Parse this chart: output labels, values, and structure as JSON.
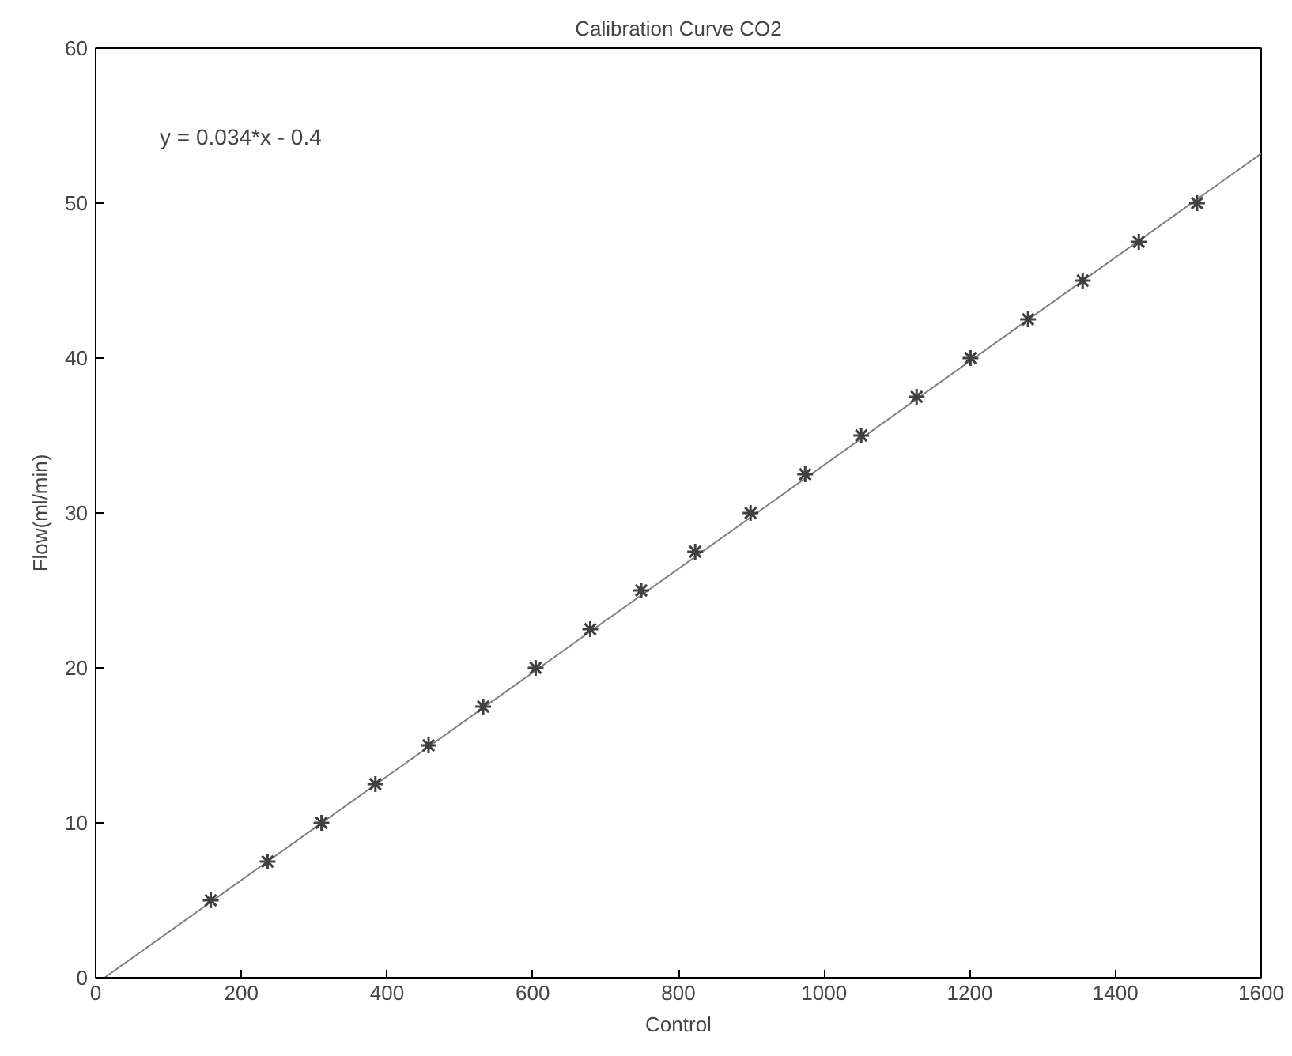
{
  "chart_data": {
    "type": "scatter",
    "title": "Calibration Curve CO2",
    "xlabel": "Control",
    "ylabel": "Flow(ml/min)",
    "annotations": [
      "y = 0.034*x - 0.4"
    ],
    "xlim": [
      0,
      1600
    ],
    "ylim": [
      0,
      60
    ],
    "xticks": [
      0,
      200,
      400,
      600,
      800,
      1000,
      1200,
      1400,
      1600
    ],
    "yticks": [
      0,
      10,
      20,
      30,
      40,
      50,
      60
    ],
    "grid": false,
    "series": [
      {
        "type": "line",
        "color": "#808080",
        "line_style": "solid",
        "marker": "none",
        "x": [
          12,
          1600
        ],
        "values": [
          0,
          53.2
        ]
      },
      {
        "color": "#404040",
        "marker": "cross",
        "x": [
          158,
          236,
          310,
          384,
          457,
          532,
          604,
          679,
          749,
          823,
          899,
          974,
          1051,
          1127,
          1201,
          1280,
          1355,
          1432,
          1512
        ],
        "values": [
          5,
          7.5,
          10,
          12.5,
          15,
          17.5,
          20,
          22.5,
          25,
          27.5,
          30,
          32.5,
          35,
          37.5,
          40,
          42.5,
          45,
          47.5,
          50
        ]
      }
    ]
  }
}
